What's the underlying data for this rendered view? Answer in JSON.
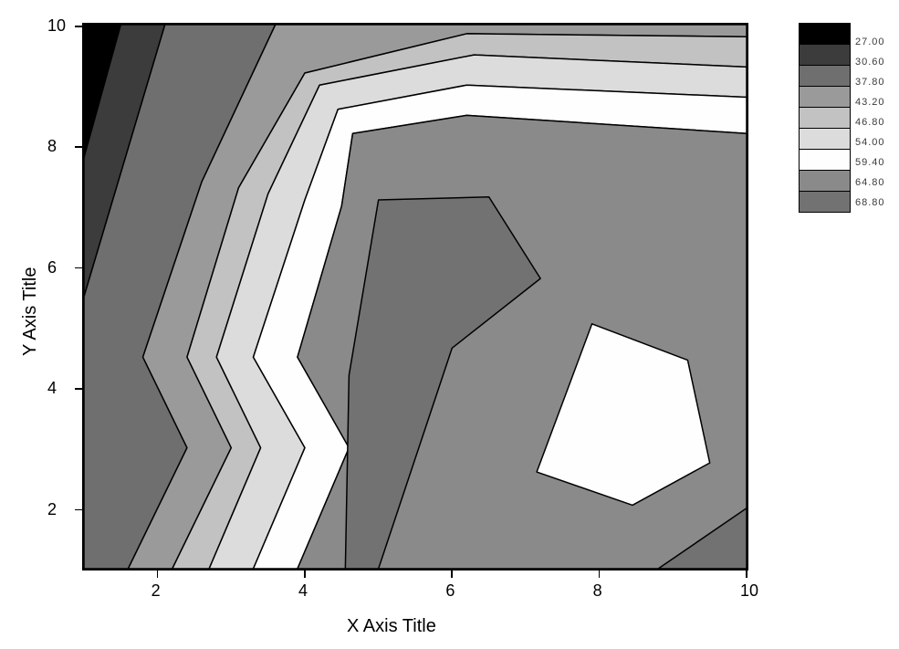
{
  "chart": {
    "type": "contour",
    "x_axis_title": "X Axis Title",
    "y_axis_title": "Y Axis Title",
    "xlim": [
      1,
      10
    ],
    "ylim": [
      1,
      10
    ],
    "xticks": [
      2,
      4,
      6,
      8,
      10
    ],
    "yticks": [
      2,
      4,
      6,
      8,
      10
    ],
    "tick_fontsize": 18,
    "title_fontsize": 20,
    "background_color": "#ffffff",
    "frame_color": "#000000",
    "contour_line_color": "#000000",
    "contour_line_width": 1.5,
    "levels": [
      {
        "upper": 27.0,
        "color": "#000000"
      },
      {
        "upper": 30.6,
        "color": "#3c3c3c"
      },
      {
        "upper": 37.8,
        "color": "#6f6f6f"
      },
      {
        "upper": 43.2,
        "color": "#9a9a9a"
      },
      {
        "upper": 46.8,
        "color": "#c2c2c2"
      },
      {
        "upper": 54.0,
        "color": "#dcdcdc"
      },
      {
        "upper": 59.4,
        "color": "#fefefe"
      },
      {
        "upper": 64.8,
        "color": "#8a8a8a"
      },
      {
        "upper": 68.8,
        "color": "#727272"
      },
      {
        "upper": 999,
        "color": "#fefefe"
      }
    ],
    "legend_labels": [
      "27.00",
      "30.60",
      "37.80",
      "43.20",
      "46.80",
      "54.00",
      "59.40",
      "64.80",
      "68.80"
    ],
    "regions": [
      {
        "level": 0,
        "points": [
          [
            1,
            10
          ],
          [
            1,
            7.8
          ],
          [
            1.5,
            10
          ]
        ]
      },
      {
        "level": 1,
        "points": [
          [
            1,
            7.8
          ],
          [
            1,
            5.5
          ],
          [
            2.1,
            10
          ],
          [
            1.5,
            10
          ]
        ]
      },
      {
        "level": 2,
        "points": [
          [
            1,
            5.5
          ],
          [
            1,
            1
          ],
          [
            1.6,
            1
          ],
          [
            2.4,
            3
          ],
          [
            1.8,
            4.5
          ],
          [
            2.6,
            7.4
          ],
          [
            3.6,
            10
          ],
          [
            2.1,
            10
          ]
        ]
      },
      {
        "level": 3,
        "points": [
          [
            1.6,
            1
          ],
          [
            2.2,
            1
          ],
          [
            3.0,
            3
          ],
          [
            2.4,
            4.5
          ],
          [
            3.1,
            7.3
          ],
          [
            4.0,
            9.2
          ],
          [
            6.2,
            9.85
          ],
          [
            10,
            9.8
          ],
          [
            10,
            10
          ],
          [
            3.6,
            10
          ],
          [
            2.6,
            7.4
          ],
          [
            1.8,
            4.5
          ],
          [
            2.4,
            3
          ]
        ]
      },
      {
        "level": 4,
        "points": [
          [
            2.2,
            1
          ],
          [
            2.7,
            1
          ],
          [
            3.4,
            3
          ],
          [
            2.8,
            4.5
          ],
          [
            3.5,
            7.2
          ],
          [
            4.2,
            9.0
          ],
          [
            6.3,
            9.5
          ],
          [
            10,
            9.3
          ],
          [
            10,
            9.8
          ],
          [
            6.2,
            9.85
          ],
          [
            4.0,
            9.2
          ],
          [
            3.1,
            7.3
          ],
          [
            2.4,
            4.5
          ],
          [
            3.0,
            3
          ]
        ]
      },
      {
        "level": 5,
        "points": [
          [
            2.7,
            1
          ],
          [
            3.3,
            1
          ],
          [
            4.0,
            3
          ],
          [
            3.3,
            4.5
          ],
          [
            4.0,
            7.1
          ],
          [
            4.45,
            8.6
          ],
          [
            6.2,
            9.0
          ],
          [
            10,
            8.8
          ],
          [
            10,
            9.3
          ],
          [
            6.3,
            9.5
          ],
          [
            4.2,
            9.0
          ],
          [
            3.5,
            7.2
          ],
          [
            2.8,
            4.5
          ],
          [
            3.4,
            3
          ]
        ]
      },
      {
        "level": 6,
        "points": [
          [
            3.3,
            1
          ],
          [
            3.9,
            1
          ],
          [
            4.6,
            3
          ],
          [
            3.9,
            4.5
          ],
          [
            4.5,
            7.0
          ],
          [
            4.65,
            8.2
          ],
          [
            6.2,
            8.5
          ],
          [
            10,
            8.2
          ],
          [
            10,
            8.8
          ],
          [
            6.2,
            9.0
          ],
          [
            4.45,
            8.6
          ],
          [
            4.0,
            7.1
          ],
          [
            3.3,
            4.5
          ],
          [
            4.0,
            3
          ]
        ]
      },
      {
        "level": 7,
        "points": [
          [
            3.9,
            1
          ],
          [
            10,
            1
          ],
          [
            10,
            8.2
          ],
          [
            6.2,
            8.5
          ],
          [
            4.65,
            8.2
          ],
          [
            4.5,
            7.0
          ],
          [
            3.9,
            4.5
          ],
          [
            4.6,
            3
          ]
        ]
      },
      {
        "level": 8,
        "points": [
          [
            4.55,
            1
          ],
          [
            4.6,
            4.2
          ],
          [
            5.0,
            7.1
          ],
          [
            6.5,
            7.15
          ],
          [
            7.2,
            5.8
          ],
          [
            6.0,
            4.65
          ],
          [
            5.0,
            1
          ]
        ]
      },
      {
        "level": 8,
        "points": [
          [
            10,
            1
          ],
          [
            10,
            2.0
          ],
          [
            8.8,
            1
          ]
        ]
      },
      {
        "level": 9,
        "points": [
          [
            7.15,
            2.6
          ],
          [
            7.9,
            5.05
          ],
          [
            9.2,
            4.45
          ],
          [
            9.5,
            2.75
          ],
          [
            8.45,
            2.05
          ]
        ]
      }
    ]
  }
}
